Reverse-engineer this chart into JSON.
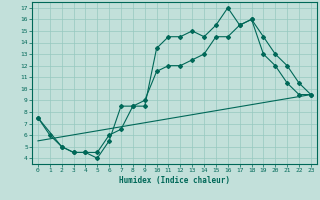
{
  "xlabel": "Humidex (Indice chaleur)",
  "xlim": [
    -0.5,
    23.5
  ],
  "ylim": [
    3.5,
    17.5
  ],
  "xticks": [
    0,
    1,
    2,
    3,
    4,
    5,
    6,
    7,
    8,
    9,
    10,
    11,
    12,
    13,
    14,
    15,
    16,
    17,
    18,
    19,
    20,
    21,
    22,
    23
  ],
  "yticks": [
    4,
    5,
    6,
    7,
    8,
    9,
    10,
    11,
    12,
    13,
    14,
    15,
    16,
    17
  ],
  "background_color": "#c2e0da",
  "grid_color": "#96c8c0",
  "line_color": "#006858",
  "line1_x": [
    0,
    1,
    2,
    3,
    4,
    5,
    6,
    7,
    8,
    9,
    10,
    11,
    12,
    13,
    14,
    15,
    16,
    17,
    18,
    19,
    20,
    21,
    22,
    23
  ],
  "line1_y": [
    7.5,
    6.0,
    5.0,
    4.5,
    4.5,
    4.0,
    5.5,
    8.5,
    8.5,
    8.5,
    13.5,
    14.5,
    14.5,
    15.0,
    14.5,
    15.5,
    17.0,
    15.5,
    16.0,
    13.0,
    12.0,
    10.5,
    9.5,
    9.5
  ],
  "line2_x": [
    0,
    2,
    3,
    4,
    5,
    6,
    7,
    8,
    9,
    10,
    11,
    12,
    13,
    14,
    15,
    16,
    17,
    18,
    19,
    20,
    21,
    22,
    23
  ],
  "line2_y": [
    7.5,
    5.0,
    4.5,
    4.5,
    4.5,
    6.0,
    6.5,
    8.5,
    9.0,
    11.5,
    12.0,
    12.0,
    12.5,
    13.0,
    14.5,
    14.5,
    15.5,
    16.0,
    14.5,
    13.0,
    12.0,
    10.5,
    9.5
  ],
  "line3_x": [
    0,
    23
  ],
  "line3_y": [
    5.5,
    9.5
  ]
}
